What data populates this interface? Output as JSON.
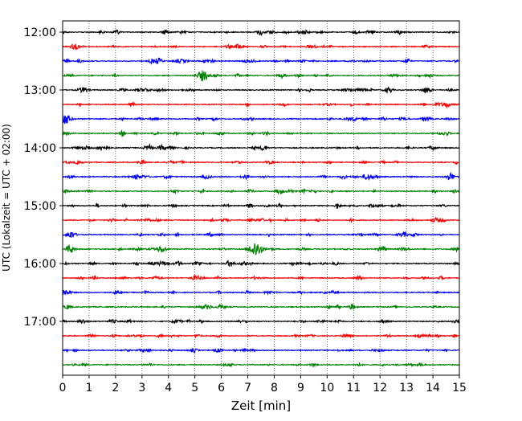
{
  "chart_data": {
    "type": "line",
    "title": "",
    "xlabel": "Zeit  [min]",
    "ylabel": "UTC (Lokalzeit = UTC + 02:00)",
    "xlim": [
      0,
      15
    ],
    "x_ticks": [
      "0",
      "1",
      "2",
      "3",
      "4",
      "5",
      "6",
      "7",
      "8",
      "9",
      "10",
      "11",
      "12",
      "13",
      "14",
      "15"
    ],
    "y_ticks": [
      {
        "label": "12:00",
        "row": 0
      },
      {
        "label": "13:00",
        "row": 4
      },
      {
        "label": "14:00",
        "row": 8
      },
      {
        "label": "15:00",
        "row": 12
      },
      {
        "label": "16:00",
        "row": 16
      },
      {
        "label": "17:00",
        "row": 20
      }
    ],
    "row_interval_minutes": 15,
    "rows": 24,
    "grid": "vertical dotted",
    "trace_colors": [
      "#000000",
      "#ff0000",
      "#0000ff",
      "#008000"
    ],
    "events": [
      {
        "row": 0,
        "x": 7.9,
        "a": 0.25
      },
      {
        "row": 1,
        "x": 0.5,
        "a": 0.35
      },
      {
        "row": 2,
        "x": 3.6,
        "a": 0.35
      },
      {
        "row": 3,
        "x": 5.3,
        "a": 0.8
      },
      {
        "row": 3,
        "x": 8.3,
        "a": 0.35
      },
      {
        "row": 4,
        "x": 3.7,
        "a": 0.25
      },
      {
        "row": 4,
        "x": 12.3,
        "a": 0.3
      },
      {
        "row": 5,
        "x": 14.5,
        "a": 0.2
      },
      {
        "row": 6,
        "x": 0.1,
        "a": 0.8
      },
      {
        "row": 6,
        "x": 13.7,
        "a": 0.3
      },
      {
        "row": 7,
        "x": 7.7,
        "a": 0.25
      },
      {
        "row": 8,
        "x": 1.6,
        "a": 0.3
      },
      {
        "row": 8,
        "x": 14.0,
        "a": 0.3
      },
      {
        "row": 9,
        "x": 0.6,
        "a": 0.25
      },
      {
        "row": 10,
        "x": 11.5,
        "a": 0.3
      },
      {
        "row": 11,
        "x": 8.2,
        "a": 0.25
      },
      {
        "row": 12,
        "x": 11.7,
        "a": 0.25
      },
      {
        "row": 13,
        "x": 7.5,
        "a": 0.25
      },
      {
        "row": 14,
        "x": 0.3,
        "a": 0.55
      },
      {
        "row": 15,
        "x": 7.3,
        "a": 1.2
      },
      {
        "row": 16,
        "x": 6.3,
        "a": 0.2
      },
      {
        "row": 17,
        "x": 11.2,
        "a": 0.25
      },
      {
        "row": 18,
        "x": 0.2,
        "a": 0.25
      },
      {
        "row": 19,
        "x": 5.4,
        "a": 0.2
      },
      {
        "row": 20,
        "x": 10.4,
        "a": 0.25
      },
      {
        "row": 21,
        "x": 3.7,
        "a": 0.2
      }
    ]
  }
}
